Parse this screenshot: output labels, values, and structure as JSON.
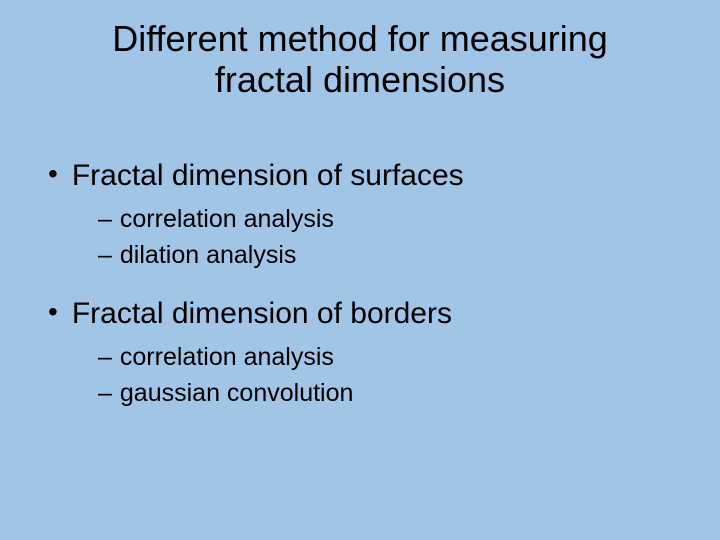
{
  "slide": {
    "background_color": "#a1c5e7",
    "text_color": "#000000",
    "title": "Different method for measuring fractal dimensions",
    "title_fontsize": 36,
    "bullet_fontsize": 30,
    "subbullet_fontsize": 25,
    "bullets": [
      {
        "text": "Fractal dimension of surfaces",
        "subitems": [
          "correlation analysis",
          "dilation analysis"
        ]
      },
      {
        "text": "Fractal dimension of borders",
        "subitems": [
          "correlation analysis",
          "gaussian convolution"
        ]
      }
    ]
  }
}
